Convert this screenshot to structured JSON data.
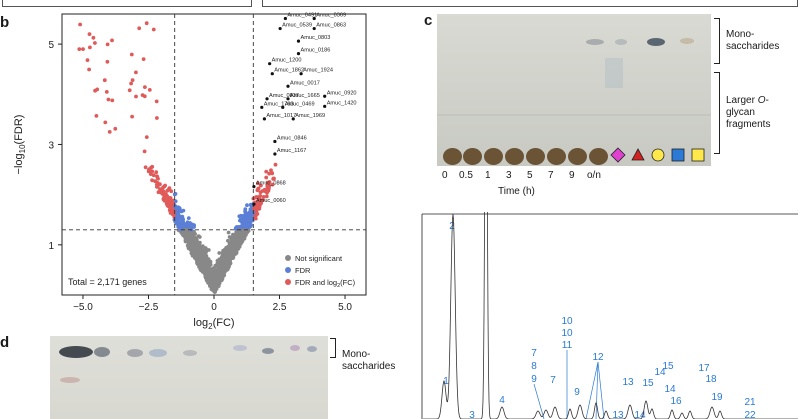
{
  "panel_b": {
    "letter": "b",
    "chart_data": {
      "type": "scatter",
      "xlabel": "log2(FC)",
      "ylabel": "−log10(FDR)",
      "xlim": [
        -5.8,
        5.8
      ],
      "ylim": [
        0,
        5.6
      ],
      "x_ticks": [
        "−5.0",
        "−2.5",
        "0",
        "2.5",
        "5.0"
      ],
      "y_ticks": [
        "1",
        "3",
        "5"
      ],
      "thresholds": {
        "vertical": [
          -1.5,
          1.5
        ],
        "horizontal": 1.3
      },
      "legend": [
        {
          "label": "Not significant",
          "color": "#888888"
        },
        {
          "label": "FDR",
          "color": "#5b7fd6"
        },
        {
          "label": "FDR and log2(FC)",
          "color": "#e05a5a"
        }
      ],
      "legend_placement": "bottom-right",
      "total_label": "Total = 2,171 genes",
      "annotations": [
        {
          "label": "Amuc_0491",
          "x": 2.8,
          "y": 5.55
        },
        {
          "label": "Amuc_0369",
          "x": 3.9,
          "y": 5.55
        },
        {
          "label": "Amuc_0539",
          "x": 2.6,
          "y": 5.35
        },
        {
          "label": "Amuc_0863",
          "x": 3.9,
          "y": 5.35
        },
        {
          "label": "Amuc_0803",
          "x": 3.3,
          "y": 5.1
        },
        {
          "label": "Amuc_0186",
          "x": 3.3,
          "y": 4.85
        },
        {
          "label": "Amuc_1200",
          "x": 2.2,
          "y": 4.65
        },
        {
          "label": "Amuc_1862",
          "x": 2.3,
          "y": 4.45
        },
        {
          "label": "Amuc_1924",
          "x": 3.4,
          "y": 4.45
        },
        {
          "label": "Amuc_0017",
          "x": 2.9,
          "y": 4.2
        },
        {
          "label": "Amuc_0920",
          "x": 4.3,
          "y": 4.0
        },
        {
          "label": "Amuc_0837",
          "x": 2.1,
          "y": 3.95
        },
        {
          "label": "Amuc_1665",
          "x": 2.9,
          "y": 3.95
        },
        {
          "label": "Amuc_1420",
          "x": 4.3,
          "y": 3.8
        },
        {
          "label": "Amuc_1763",
          "x": 1.9,
          "y": 3.78
        },
        {
          "label": "Amuc_0469",
          "x": 2.7,
          "y": 3.78
        },
        {
          "label": "Amuc_1017",
          "x": 2.0,
          "y": 3.55
        },
        {
          "label": "Amuc_1969",
          "x": 3.1,
          "y": 3.55
        },
        {
          "label": "Amuc_0846",
          "x": 2.4,
          "y": 3.1
        },
        {
          "label": "Amuc_1167",
          "x": 2.4,
          "y": 2.85
        },
        {
          "label": "Amuc_0868",
          "x": 1.6,
          "y": 2.2
        },
        {
          "label": "Amuc_0060",
          "x": 1.6,
          "y": 1.85
        }
      ]
    }
  },
  "panel_c": {
    "letter": "c",
    "x_labels": [
      "0",
      "0.5",
      "1",
      "3",
      "5",
      "7",
      "9",
      "o/n"
    ],
    "xlabel": "Time (h)",
    "bracket_labels": {
      "mono": "Mono-\nsaccharides",
      "larger_prefix": "Larger ",
      "larger_italic": "O",
      "larger_suffix": "-\nglycan\nfragments"
    },
    "standards": [
      {
        "shape": "diamond",
        "color": "#e040d0",
        "label": ""
      },
      {
        "shape": "triangle",
        "color": "#d42020",
        "label": ""
      },
      {
        "shape": "circle",
        "color": "#ffe94a",
        "label": ""
      },
      {
        "shape": "square",
        "color": "#2a7ad6",
        "label": ""
      },
      {
        "shape": "square",
        "color": "#ffe94a",
        "label": ""
      }
    ]
  },
  "panel_d": {
    "letter": "d",
    "bracket_label": "Mono-\nsaccharides"
  },
  "panel_e": {
    "peaks": [
      {
        "label": "1"
      },
      {
        "label": "2"
      },
      {
        "label": "3"
      },
      {
        "label": "4"
      },
      {
        "label": "7"
      },
      {
        "label": "8"
      },
      {
        "label": "9"
      },
      {
        "label": "7"
      },
      {
        "label": "10"
      },
      {
        "label": "10"
      },
      {
        "label": "11"
      },
      {
        "label": "9"
      },
      {
        "label": "12"
      },
      {
        "label": "13"
      },
      {
        "label": "13"
      },
      {
        "label": "14"
      },
      {
        "label": "15"
      },
      {
        "label": "14"
      },
      {
        "label": "15"
      },
      {
        "label": "14"
      },
      {
        "label": "16"
      },
      {
        "label": "17"
      },
      {
        "label": "18"
      },
      {
        "label": "19"
      },
      {
        "label": "21"
      },
      {
        "label": "22"
      }
    ]
  }
}
